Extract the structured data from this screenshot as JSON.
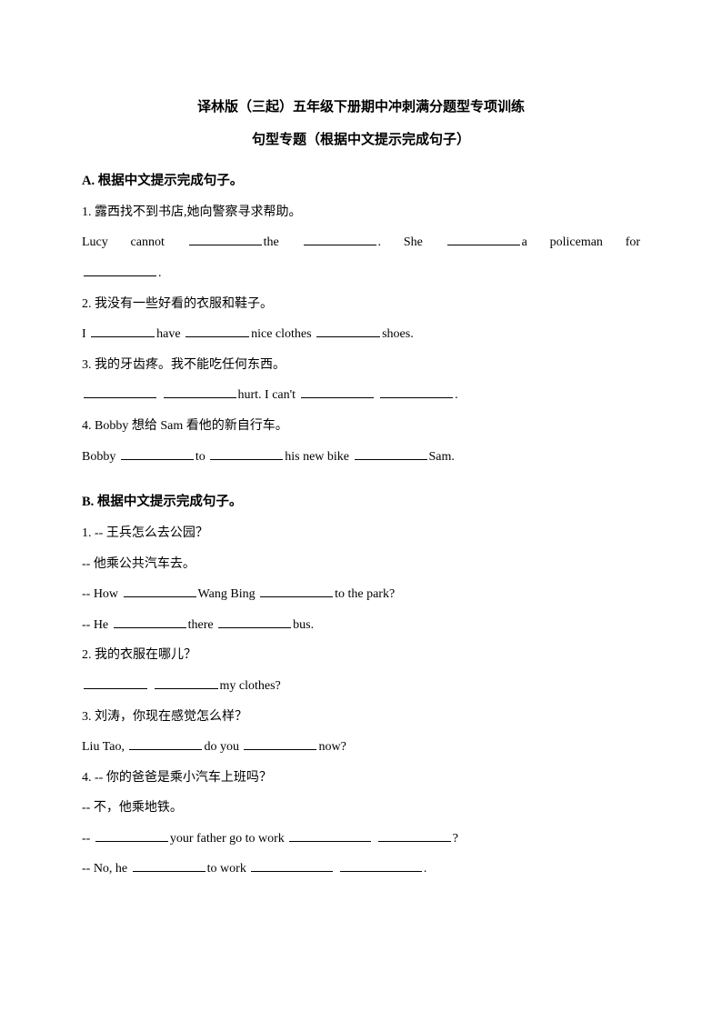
{
  "title": "译林版（三起）五年级下册期中冲刺满分题型专项训练",
  "subtitle": "句型专题（根据中文提示完成句子）",
  "sectionA": {
    "head": "A. 根据中文提示完成句子。",
    "q1_cn": "1. 露西找不到书店,她向警察寻求帮助。",
    "q1_en_a": "Lucy",
    "q1_en_b": "cannot",
    "q1_en_c": "the",
    "q1_en_d": ".",
    "q1_en_e": "She",
    "q1_en_f": "a",
    "q1_en_g": "policeman",
    "q1_en_h": "for",
    "q1_en_i": ".",
    "q2_cn": "2. 我没有一些好看的衣服和鞋子。",
    "q2_en_a": "I ",
    "q2_en_b": "have ",
    "q2_en_c": "nice clothes ",
    "q2_en_d": "shoes.",
    "q3_cn": "3. 我的牙齿疼。我不能吃任何东西。",
    "q3_en_a": "hurt. I can't ",
    "q3_en_b": ".",
    "q4_cn": "4. Bobby 想给 Sam 看他的新自行车。",
    "q4_en_a": "Bobby ",
    "q4_en_b": "to ",
    "q4_en_c": "his new bike ",
    "q4_en_d": "Sam."
  },
  "sectionB": {
    "head": "B. 根据中文提示完成句子。",
    "q1_cn1": "1. -- 王兵怎么去公园？",
    "q1_cn2": "-- 他乘公共汽车去。",
    "q1_en_a": "-- How ",
    "q1_en_b": "Wang Bing ",
    "q1_en_c": "to the park?",
    "q1_en_d": "-- He ",
    "q1_en_e": "there ",
    "q1_en_f": "bus.",
    "q2_cn": "2. 我的衣服在哪儿？",
    "q2_en_a": "my clothes?",
    "q3_cn": "3. 刘涛，你现在感觉怎么样？",
    "q3_en_a": "Liu Tao, ",
    "q3_en_b": "do you ",
    "q3_en_c": "now?",
    "q4_cn1": "4. -- 你的爸爸是乘小汽车上班吗？",
    "q4_cn2": "-- 不，他乘地铁。",
    "q4_en_a": "-- ",
    "q4_en_b": "your father go to work ",
    "q4_en_c": "?",
    "q4_en_d": "-- No, he ",
    "q4_en_e": "to work ",
    "q4_en_f": "."
  }
}
